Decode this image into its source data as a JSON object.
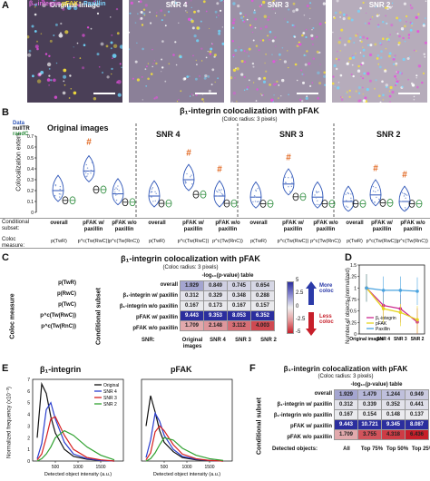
{
  "panels": {
    "A": {
      "label": "A",
      "images": [
        {
          "title": "Original image",
          "bg": "#4a3f57"
        },
        {
          "title": "SNR 4",
          "bg": "#8b8098"
        },
        {
          "title": "SNR 3",
          "bg": "#9c91a6"
        },
        {
          "title": "SNR 2",
          "bg": "#b6acbb"
        }
      ],
      "channel_labels": {
        "beta": "β₁-integrin",
        "pfak": "pFAK",
        "paxillin": "Paxillin"
      }
    },
    "B": {
      "label": "B",
      "title": "β₁-integrin colocalization with pFAK",
      "subtitle": "(Coloc radius: 3 pixels)",
      "ylabel": "Colocalization extent",
      "legend": [
        "Data",
        "nullTR",
        "randC"
      ],
      "legend_colors": [
        "#2f56b8",
        "#111111",
        "#2a8a3a"
      ],
      "groups": [
        "Original images",
        "SNR 4",
        "SNR 3",
        "SNR 2"
      ],
      "subset_label": "Conditional subset:",
      "subsets": [
        "overall",
        "pFAK w/ paxillin",
        "pFAK w/o paxillin"
      ],
      "measure_label": "Coloc measure:",
      "measures": [
        "p(TwR)",
        "p^c(Tw(RwC))",
        "p^c(Tw(RnC))"
      ],
      "hash": "#",
      "yticks": [
        "0",
        "0.1",
        "0.2",
        "0.3",
        "0.4",
        "0.5",
        "0.6",
        "0.7"
      ]
    },
    "C": {
      "label": "C",
      "title": "β₁-integrin colocalization with pFAK",
      "subtitle": "(Coloc radius: 3 pixels)",
      "table_title": "-log₁₀(p-value) table",
      "row_axis": "Conditional subset",
      "measure_axis": "Coloc measure",
      "measures": [
        "p(TwR)",
        "p(RwC)",
        "p(TwC)",
        "p^c(Tw(RwC))",
        "p^c(Tw(RnC))"
      ],
      "rows": [
        "overall",
        "β₁-integrin w/ paxillin",
        "β₁-integrin w/o paxillin",
        "pFAK w/ paxillin",
        "pFAK w/o paxillin"
      ],
      "cols": [
        "Original images",
        "SNR 4",
        "SNR 3",
        "SNR 2"
      ],
      "snr_label": "SNR:",
      "values": [
        [
          "1.929",
          "0.849",
          "0.745",
          "0.654"
        ],
        [
          "0.312",
          "0.329",
          "0.348",
          "0.288"
        ],
        [
          "0.167",
          "0.173",
          "0.167",
          "0.157"
        ],
        [
          "9.443",
          "9.353",
          "8.053",
          "6.352"
        ],
        [
          "1.709",
          "2.148",
          "3.112",
          "4.003"
        ]
      ],
      "scale": {
        "top": "5",
        "mid1": "2.5",
        "mid2": "0",
        "mid3": "-2.5",
        "bottom": "-5"
      },
      "more": "More coloc",
      "less": "Less coloc"
    },
    "D": {
      "label": "D",
      "ylabel": "Number of objects (normalized)",
      "x": [
        "Original images",
        "SNR 4",
        "SNR 3",
        "SNR 2"
      ],
      "yticks": [
        "0",
        "0.25",
        "0.5",
        "0.75",
        "1",
        "1.25",
        "1.5"
      ],
      "legend": [
        "β₁-integrin",
        "pFAK",
        "Paxillin"
      ]
    },
    "E": {
      "label": "E",
      "left_title": "β₁-integrin",
      "right_title": "pFAK",
      "ylabel": "Normalized frequency (x10⁻³)",
      "xlabel": "Detected object intensity (a.u.)",
      "legend": [
        "Original",
        "SNR 4",
        "SNR 3",
        "SNR 2"
      ],
      "xticks": [
        "500",
        "1000",
        "1500"
      ],
      "yticks": [
        "0",
        "1",
        "2",
        "3",
        "4",
        "5",
        "6",
        "7"
      ]
    },
    "F": {
      "label": "F",
      "title": "β₁-integrin colocalization with pFAK",
      "subtitle": "(Coloc radius: 3 pixels)",
      "table_title": "-log₁₀(p-value) table",
      "row_axis": "Conditional subset",
      "rows": [
        "overall",
        "β₁-integrin w/ paxillin",
        "β₁-integrin w/o paxillin",
        "pFAK w/ paxillin",
        "pFAK w/o paxillin"
      ],
      "cols": [
        "All",
        "Top 75%",
        "Top 50%",
        "Top 25%"
      ],
      "detected_label": "Detected objects:",
      "values": [
        [
          "1.929",
          "1.479",
          "1.244",
          "0.949"
        ],
        [
          "0.312",
          "0.339",
          "0.352",
          "0.441"
        ],
        [
          "0.167",
          "0.154",
          "0.148",
          "0.137"
        ],
        [
          "9.443",
          "10.721",
          "9.345",
          "8.087"
        ],
        [
          "1.709",
          "3.755",
          "4.318",
          "6.436"
        ]
      ]
    }
  },
  "chart_data": [
    {
      "type": "line",
      "title": "",
      "xlabel": "",
      "ylabel": "Number of objects (normalized)",
      "categories": [
        "Original images",
        "SNR 4",
        "SNR 3",
        "SNR 2"
      ],
      "ylim": [
        0,
        1.5
      ],
      "series": [
        {
          "name": "β₁-integrin",
          "color": "#cc2a8f",
          "values": [
            1.0,
            0.62,
            0.55,
            0.26
          ]
        },
        {
          "name": "pFAK",
          "color": "#e6d51f",
          "values": [
            1.0,
            0.55,
            0.47,
            0.31
          ]
        },
        {
          "name": "Paxillin",
          "color": "#4aa3df",
          "values": [
            1.0,
            0.95,
            0.95,
            0.93
          ]
        }
      ]
    },
    {
      "type": "line",
      "title": "β₁-integrin",
      "xlabel": "Detected object intensity (a.u.)",
      "ylabel": "Normalized frequency (x10⁻³)",
      "x": [
        100,
        200,
        300,
        400,
        500,
        700,
        900,
        1200,
        1500,
        1800
      ],
      "ylim": [
        0,
        7
      ],
      "series": [
        {
          "name": "Original",
          "color": "#111111",
          "values": [
            2.0,
            6.6,
            5.8,
            3.8,
            2.4,
            1.0,
            0.4,
            0.15,
            0.05,
            0.0
          ]
        },
        {
          "name": "SNR 4",
          "color": "#2b3fcf",
          "values": [
            0.2,
            1.5,
            4.4,
            5.0,
            3.6,
            1.6,
            0.6,
            0.2,
            0.05,
            0.0
          ]
        },
        {
          "name": "SNR 3",
          "color": "#d61f1f",
          "values": [
            0.1,
            0.6,
            2.0,
            3.6,
            3.8,
            2.2,
            1.0,
            0.3,
            0.1,
            0.0
          ]
        },
        {
          "name": "SNR 2",
          "color": "#2fa12f",
          "values": [
            0.0,
            0.2,
            0.6,
            1.2,
            2.0,
            2.6,
            2.2,
            1.2,
            0.5,
            0.1
          ]
        }
      ]
    },
    {
      "type": "line",
      "title": "pFAK",
      "xlabel": "Detected object intensity (a.u.)",
      "ylabel": "",
      "x": [
        100,
        200,
        300,
        400,
        500,
        700,
        900,
        1200,
        1500,
        1800
      ],
      "ylim": [
        0,
        7
      ],
      "series": [
        {
          "name": "Original",
          "color": "#111111",
          "values": [
            3.0,
            5.6,
            4.2,
            2.6,
            1.6,
            0.8,
            0.3,
            0.1,
            0.05,
            0.0
          ]
        },
        {
          "name": "SNR 4",
          "color": "#2b3fcf",
          "values": [
            0.3,
            1.8,
            4.1,
            3.4,
            2.2,
            1.0,
            0.4,
            0.15,
            0.05,
            0.0
          ]
        },
        {
          "name": "SNR 3",
          "color": "#d61f1f",
          "values": [
            0.1,
            0.7,
            2.5,
            3.0,
            2.6,
            1.4,
            0.6,
            0.2,
            0.05,
            0.0
          ]
        },
        {
          "name": "SNR 2",
          "color": "#2fa12f",
          "values": [
            0.0,
            0.2,
            0.7,
            1.4,
            2.0,
            1.8,
            1.1,
            0.5,
            0.2,
            0.05
          ]
        }
      ]
    }
  ]
}
